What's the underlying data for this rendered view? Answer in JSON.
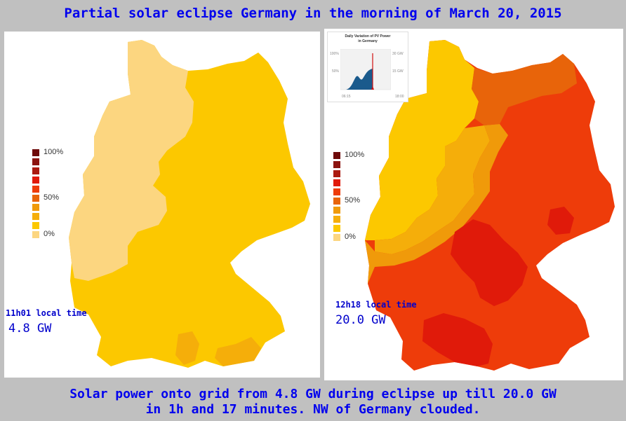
{
  "title": "Partial solar eclipse Germany in the morning of March 20, 2015",
  "left_panel": {
    "time": "11h01 local time",
    "power": "4.8 GW"
  },
  "right_panel": {
    "time": "12h18 local time",
    "power": "20.0 GW",
    "inset": {
      "title_line1": "Daily Variation of PV Power",
      "title_line2": "in Germany",
      "y_left": [
        "100%",
        "50%"
      ],
      "y_right": [
        "30 GW",
        "15 GW"
      ],
      "x_start": "06:15",
      "x_end": "18:00"
    }
  },
  "legend": {
    "labels": [
      "100%",
      "50%",
      "0%"
    ],
    "colors": [
      "#6e0a0a",
      "#8c1410",
      "#ab1a10",
      "#e01a0a",
      "#ee3c0a",
      "#e8640a",
      "#f09a0a",
      "#f5ae0a",
      "#fcc800",
      "#fcd680"
    ]
  },
  "map_colors": {
    "light": "#fcd680",
    "yellow": "#fcc800",
    "amber": "#f5ae0a",
    "orange": "#f09a0a",
    "deep_orange": "#e8640a",
    "red_orange": "#ee3c0a",
    "red": "#e01a0a"
  },
  "caption": {
    "line1": "Solar power onto grid from 4.8 GW during eclipse up till 20.0 GW",
    "line2": "in 1h and 17 minutes. NW of Germany clouded."
  }
}
